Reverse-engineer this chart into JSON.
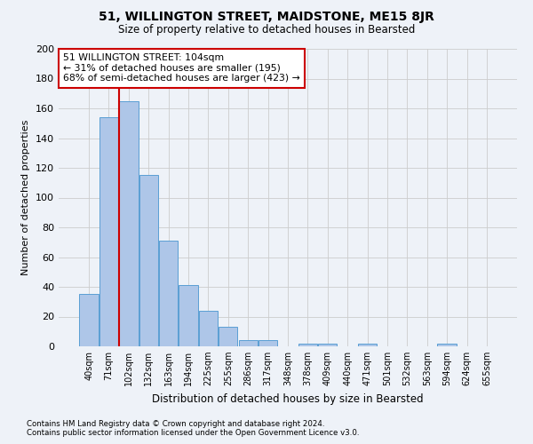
{
  "title": "51, WILLINGTON STREET, MAIDSTONE, ME15 8JR",
  "subtitle": "Size of property relative to detached houses in Bearsted",
  "xlabel": "Distribution of detached houses by size in Bearsted",
  "ylabel": "Number of detached properties",
  "footnote1": "Contains HM Land Registry data © Crown copyright and database right 2024.",
  "footnote2": "Contains public sector information licensed under the Open Government Licence v3.0.",
  "bin_labels": [
    "40sqm",
    "71sqm",
    "102sqm",
    "132sqm",
    "163sqm",
    "194sqm",
    "225sqm",
    "255sqm",
    "286sqm",
    "317sqm",
    "348sqm",
    "378sqm",
    "409sqm",
    "440sqm",
    "471sqm",
    "501sqm",
    "532sqm",
    "563sqm",
    "594sqm",
    "624sqm",
    "655sqm"
  ],
  "bar_values": [
    35,
    154,
    165,
    115,
    71,
    41,
    24,
    13,
    4,
    4,
    0,
    2,
    2,
    0,
    2,
    0,
    0,
    0,
    2,
    0,
    0
  ],
  "bar_color": "#aec6e8",
  "bar_edge_color": "#5a9fd4",
  "red_line_index": 2,
  "annotation_line1": "51 WILLINGTON STREET: 104sqm",
  "annotation_line2": "← 31% of detached houses are smaller (195)",
  "annotation_line3": "68% of semi-detached houses are larger (423) →",
  "annotation_box_color": "#ffffff",
  "annotation_box_edge": "#cc0000",
  "ylim": [
    0,
    200
  ],
  "yticks": [
    0,
    20,
    40,
    60,
    80,
    100,
    120,
    140,
    160,
    180,
    200
  ],
  "grid_color": "#cccccc",
  "bg_color": "#eef2f8",
  "plot_bg_color": "#eef2f8"
}
